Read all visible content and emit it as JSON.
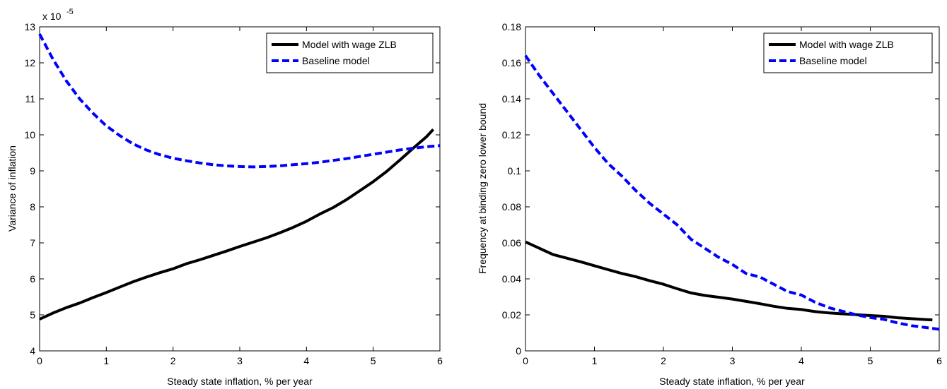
{
  "chart_data": [
    {
      "type": "line",
      "title": "",
      "xlabel": "Steady state inflation, % per year",
      "ylabel": "Variance of inflation",
      "y_exponent_label": "x 10",
      "y_exponent_value": "-5",
      "xlim": [
        0,
        6
      ],
      "ylim": [
        4,
        13
      ],
      "xticks": [
        "0",
        "1",
        "2",
        "3",
        "4",
        "5",
        "6"
      ],
      "yticks": [
        "4",
        "5",
        "6",
        "7",
        "8",
        "9",
        "10",
        "11",
        "12",
        "13"
      ],
      "legend_position": "top-right",
      "grid": false,
      "series": [
        {
          "name": "Model with wage ZLB",
          "color": "#000000",
          "style": "solid",
          "x": [
            0,
            0.2,
            0.4,
            0.6,
            0.8,
            1.0,
            1.2,
            1.4,
            1.6,
            1.8,
            2.0,
            2.2,
            2.4,
            2.6,
            2.8,
            3.0,
            3.2,
            3.4,
            3.6,
            3.8,
            4.0,
            4.2,
            4.4,
            4.6,
            4.8,
            5.0,
            5.2,
            5.4,
            5.6,
            5.8,
            5.9
          ],
          "y": [
            4.88,
            5.05,
            5.2,
            5.33,
            5.48,
            5.62,
            5.77,
            5.92,
            6.05,
            6.17,
            6.28,
            6.42,
            6.53,
            6.65,
            6.77,
            6.9,
            7.02,
            7.14,
            7.28,
            7.43,
            7.6,
            7.8,
            7.98,
            8.2,
            8.45,
            8.7,
            8.98,
            9.3,
            9.63,
            9.95,
            10.15
          ]
        },
        {
          "name": "Baseline model",
          "color": "#0000ff",
          "style": "dashed",
          "x": [
            0,
            0.2,
            0.4,
            0.6,
            0.8,
            1.0,
            1.2,
            1.4,
            1.6,
            1.8,
            2.0,
            2.2,
            2.4,
            2.6,
            2.8,
            3.0,
            3.2,
            3.4,
            3.6,
            3.8,
            4.0,
            4.2,
            4.4,
            4.6,
            4.8,
            5.0,
            5.2,
            5.4,
            5.6,
            5.8,
            6.0
          ],
          "y": [
            12.8,
            12.1,
            11.5,
            11.0,
            10.6,
            10.25,
            9.98,
            9.75,
            9.58,
            9.45,
            9.35,
            9.28,
            9.22,
            9.17,
            9.14,
            9.12,
            9.11,
            9.12,
            9.14,
            9.17,
            9.2,
            9.24,
            9.29,
            9.34,
            9.4,
            9.46,
            9.52,
            9.58,
            9.63,
            9.67,
            9.7
          ]
        }
      ]
    },
    {
      "type": "line",
      "title": "",
      "xlabel": "Steady state inflation, % per year",
      "ylabel": "Frequency at binding zero lower bound",
      "xlim": [
        0,
        6
      ],
      "ylim": [
        0,
        0.18
      ],
      "xticks": [
        "0",
        "1",
        "2",
        "3",
        "4",
        "5",
        "6"
      ],
      "yticks": [
        "0",
        "0.02",
        "0.04",
        "0.06",
        "0.08",
        "0.1",
        "0.12",
        "0.14",
        "0.16",
        "0.18"
      ],
      "legend_position": "top-right",
      "grid": false,
      "series": [
        {
          "name": "Model with wage ZLB",
          "color": "#000000",
          "style": "solid",
          "x": [
            0,
            0.2,
            0.4,
            0.6,
            0.8,
            1.0,
            1.2,
            1.4,
            1.6,
            1.8,
            2.0,
            2.2,
            2.4,
            2.6,
            2.8,
            3.0,
            3.2,
            3.4,
            3.6,
            3.8,
            4.0,
            4.2,
            4.4,
            4.6,
            4.8,
            5.0,
            5.2,
            5.4,
            5.6,
            5.8,
            5.9
          ],
          "y": [
            0.0605,
            0.057,
            0.0535,
            0.0515,
            0.0495,
            0.0473,
            0.0451,
            0.043,
            0.0412,
            0.039,
            0.037,
            0.0345,
            0.0322,
            0.0308,
            0.0298,
            0.0288,
            0.0275,
            0.0262,
            0.0248,
            0.0236,
            0.023,
            0.0218,
            0.0211,
            0.0206,
            0.0201,
            0.0196,
            0.0192,
            0.0184,
            0.0179,
            0.0174,
            0.0172
          ]
        },
        {
          "name": "Baseline model",
          "color": "#0000ff",
          "style": "dashed",
          "x": [
            0,
            0.2,
            0.4,
            0.6,
            0.8,
            1.0,
            1.2,
            1.4,
            1.6,
            1.8,
            2.0,
            2.2,
            2.4,
            2.6,
            2.8,
            3.0,
            3.2,
            3.4,
            3.6,
            3.8,
            4.0,
            4.2,
            4.4,
            4.6,
            4.8,
            5.0,
            5.2,
            5.4,
            5.6,
            5.8,
            6.0
          ],
          "y": [
            0.164,
            0.153,
            0.143,
            0.133,
            0.123,
            0.113,
            0.104,
            0.097,
            0.089,
            0.082,
            0.076,
            0.07,
            0.062,
            0.057,
            0.052,
            0.048,
            0.043,
            0.041,
            0.037,
            0.033,
            0.031,
            0.027,
            0.024,
            0.022,
            0.02,
            0.0185,
            0.0175,
            0.0155,
            0.014,
            0.013,
            0.012
          ]
        }
      ]
    }
  ]
}
